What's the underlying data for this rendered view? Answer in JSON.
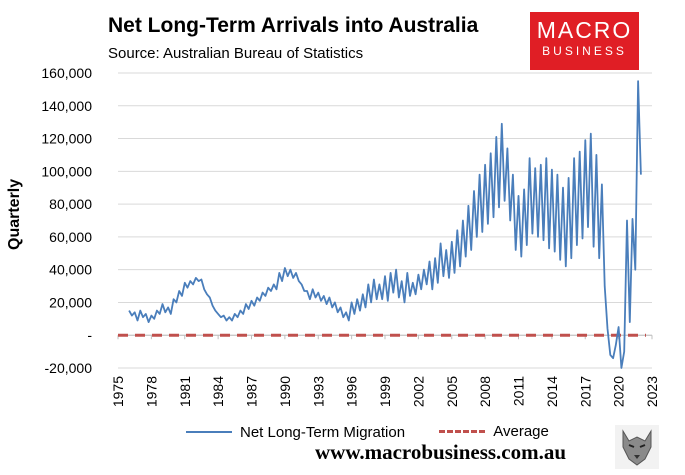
{
  "header": {
    "title": "Net Long-Term Arrivals into Australia",
    "subtitle": "Source: Australian Bureau of Statistics"
  },
  "logo": {
    "line1": "MACRO",
    "line2": "BUSINESS",
    "color": "#e01e25"
  },
  "footer": {
    "url": "www.macrobusiness.com.au",
    "wolf_icon": "wolf-icon"
  },
  "chart_data": {
    "type": "line",
    "title": "Net Long-Term Arrivals into Australia",
    "subtitle": "Source: Australian Bureau of Statistics",
    "xlabel": "",
    "ylabel": "Quarterly",
    "ylim": [
      -20000,
      160000
    ],
    "yticks": [
      -20000,
      0,
      20000,
      40000,
      60000,
      80000,
      100000,
      120000,
      140000,
      160000
    ],
    "ytick_labels": [
      "-20,000",
      "-",
      "20,000",
      "40,000",
      "60,000",
      "80,000",
      "100,000",
      "120,000",
      "140,000",
      "160,000"
    ],
    "xlim": [
      1975,
      2023
    ],
    "xticks": [
      1975,
      1978,
      1981,
      1984,
      1987,
      1990,
      1993,
      1996,
      1999,
      2002,
      2005,
      2008,
      2011,
      2014,
      2017,
      2020,
      2023
    ],
    "grid": true,
    "legend_position": "bottom",
    "series": [
      {
        "name": "Net Long-Term Migration",
        "color": "#4a7ebb",
        "x_start": 1976.0,
        "x_step": 0.25,
        "values": [
          15000,
          12000,
          14000,
          9000,
          15000,
          11000,
          13000,
          8000,
          12000,
          10000,
          15000,
          13000,
          19000,
          14000,
          17000,
          13000,
          22000,
          20000,
          27000,
          24000,
          32000,
          29000,
          33000,
          31000,
          35000,
          33000,
          34000,
          28000,
          25000,
          23000,
          18000,
          15000,
          13000,
          11000,
          12000,
          9000,
          11000,
          9000,
          13000,
          11000,
          15000,
          13000,
          19000,
          16000,
          21000,
          18000,
          23000,
          21000,
          26000,
          24000,
          29000,
          27000,
          31000,
          28000,
          38000,
          33000,
          41000,
          36000,
          40000,
          35000,
          38000,
          33000,
          31000,
          27000,
          27000,
          22000,
          28000,
          23000,
          26000,
          21000,
          24000,
          19000,
          23000,
          17000,
          20000,
          14000,
          17000,
          11000,
          14000,
          9000,
          20000,
          13000,
          22000,
          15000,
          25000,
          17000,
          31000,
          20000,
          34000,
          22000,
          31000,
          22000,
          36000,
          21000,
          38000,
          26000,
          40000,
          23000,
          33000,
          20000,
          38000,
          24000,
          32000,
          25000,
          37000,
          28000,
          40000,
          31000,
          45000,
          28000,
          47000,
          32000,
          56000,
          36000,
          52000,
          35000,
          57000,
          38000,
          64000,
          42000,
          70000,
          48000,
          79000,
          52000,
          88000,
          60000,
          98000,
          63000,
          104000,
          68000,
          111000,
          72000,
          121000,
          78000,
          129000,
          82000,
          114000,
          70000,
          98000,
          52000,
          85000,
          48000,
          89000,
          55000,
          108000,
          62000,
          102000,
          60000,
          104000,
          58000,
          108000,
          53000,
          101000,
          51000,
          98000,
          46000,
          90000,
          42000,
          96000,
          47000,
          108000,
          55000,
          112000,
          59000,
          119000,
          66000,
          123000,
          54000,
          110000,
          47000,
          92000,
          30000,
          4000,
          -12000,
          -14000,
          -6000,
          5000,
          -20000,
          -10000,
          70000,
          8000,
          71000,
          40000,
          155000,
          98000
        ]
      },
      {
        "name": "Average",
        "color": "#c0504d",
        "values": [
          0,
          0
        ]
      }
    ]
  },
  "legend": {
    "items": [
      {
        "label": "Net Long-Term Migration"
      },
      {
        "label": "Average"
      }
    ]
  }
}
